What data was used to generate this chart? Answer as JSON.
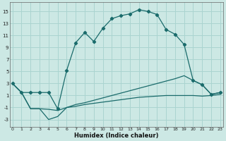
{
  "xlabel": "Humidex (Indice chaleur)",
  "bg_color": "#cce8e4",
  "grid_color": "#aad4d0",
  "line_color": "#1a6b6b",
  "x_ticks": [
    0,
    1,
    2,
    3,
    4,
    5,
    6,
    7,
    8,
    9,
    10,
    11,
    12,
    13,
    14,
    15,
    16,
    17,
    18,
    19,
    20,
    21,
    22,
    23
  ],
  "y_ticks": [
    -3,
    -1,
    1,
    3,
    5,
    7,
    9,
    11,
    13,
    15
  ],
  "ylim": [
    -4.2,
    16.5
  ],
  "xlim": [
    -0.3,
    23.3
  ],
  "s1_x": [
    0,
    1,
    2,
    3,
    4,
    5,
    6,
    7,
    8,
    9,
    10,
    11,
    12,
    13,
    14,
    15,
    16,
    17,
    18,
    19,
    20,
    21,
    22,
    23
  ],
  "s1_y": [
    3.0,
    1.5,
    1.5,
    1.5,
    1.5,
    -1.2,
    5.2,
    9.8,
    11.5,
    10.0,
    12.2,
    13.8,
    14.3,
    14.6,
    15.3,
    15.0,
    14.5,
    12.0,
    11.2,
    9.5,
    3.5,
    2.8,
    1.2,
    1.5
  ],
  "s2_x": [
    0,
    1,
    2,
    3,
    4,
    5,
    6,
    7,
    8,
    9,
    10,
    11,
    12,
    13,
    14,
    15,
    16,
    17,
    18,
    19,
    20,
    21,
    22,
    23
  ],
  "s2_y": [
    3.0,
    1.5,
    -1.2,
    -1.2,
    -1.3,
    -1.5,
    -1.0,
    -0.8,
    -0.5,
    -0.3,
    -0.1,
    0.1,
    0.3,
    0.5,
    0.7,
    0.8,
    0.9,
    1.0,
    1.0,
    1.0,
    1.0,
    0.9,
    1.0,
    1.2
  ],
  "s3_x": [
    0,
    1,
    2,
    3,
    4,
    5,
    6,
    7,
    8,
    9,
    10,
    11,
    12,
    13,
    14,
    15,
    16,
    17,
    18,
    19,
    20,
    21,
    22,
    23
  ],
  "s3_y": [
    3.0,
    1.5,
    -1.2,
    -1.2,
    -3.0,
    -2.5,
    -1.0,
    -0.5,
    -0.2,
    0.2,
    0.6,
    1.0,
    1.4,
    1.8,
    2.2,
    2.6,
    3.0,
    3.4,
    3.8,
    4.3,
    3.5,
    2.8,
    1.2,
    1.5
  ]
}
